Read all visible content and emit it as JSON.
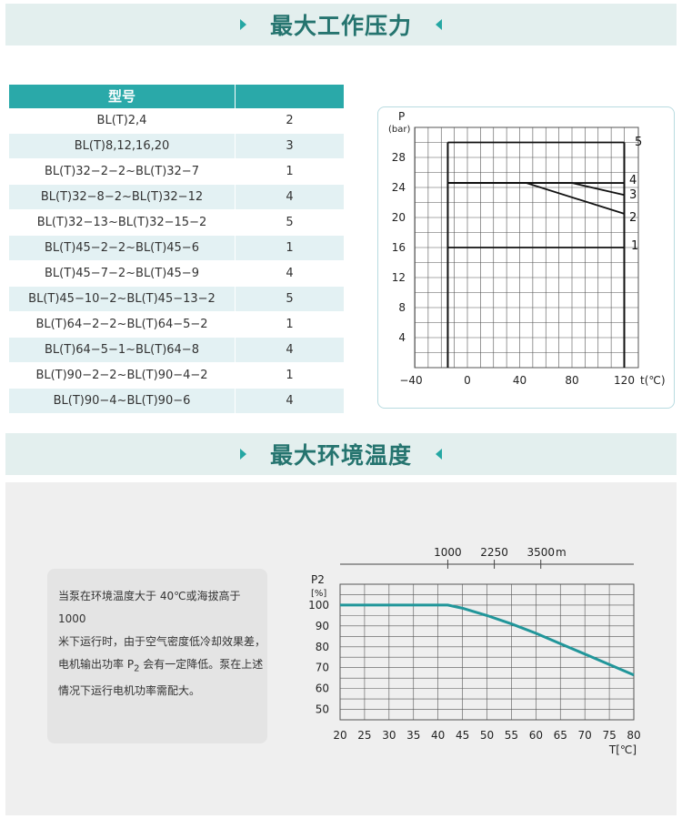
{
  "section1": {
    "title": "最大工作压力"
  },
  "section2": {
    "title": "最大环境温度"
  },
  "table": {
    "header": "型号",
    "rows": [
      {
        "model": "BL(T)2,4",
        "curve": "2"
      },
      {
        "model": "BL(T)8,12,16,20",
        "curve": "3"
      },
      {
        "model": "BL(T)32−2−2~BL(T)32−7",
        "curve": "1"
      },
      {
        "model": "BL(T)32−8−2~BL(T)32−12",
        "curve": "4"
      },
      {
        "model": "BL(T)32−13~BL(T)32−15−2",
        "curve": "5"
      },
      {
        "model": "BL(T)45−2−2~BL(T)45−6",
        "curve": "1"
      },
      {
        "model": "BL(T)45−7−2~BL(T)45−9",
        "curve": "4"
      },
      {
        "model": "BL(T)45−10−2~BL(T)45−13−2",
        "curve": "5"
      },
      {
        "model": "BL(T)64−2−2~BL(T)64−5−2",
        "curve": "1"
      },
      {
        "model": "BL(T)64−5−1~BL(T)64−8",
        "curve": "4"
      },
      {
        "model": "BL(T)90−2−2~BL(T)90−4−2",
        "curve": "1"
      },
      {
        "model": "BL(T)90−4~BL(T)90−6",
        "curve": "4"
      }
    ]
  },
  "note": {
    "line1": "当泵在环境温度大于 40℃或海拔高于 1000",
    "line2": "米下运行时，由于空气密度低冷却效果差，",
    "line3_pre": "电机输出功率 P",
    "line3_sub": "2",
    "line3_post": " 会有一定降低。泵在上述",
    "line4": "情况下运行电机功率需配大。"
  },
  "chart_data": [
    {
      "type": "line",
      "ylabel": "P",
      "ylabel_unit": "(bar)",
      "xlabel": "t(℃)",
      "xlim": [
        -40,
        120
      ],
      "ylim": [
        0,
        32
      ],
      "xticks": [
        "−40",
        "0",
        "40",
        "80",
        "120"
      ],
      "yticks": [
        "4",
        "8",
        "12",
        "16",
        "20",
        "24",
        "28"
      ],
      "grid": true,
      "series": [
        {
          "name": "1",
          "x": [
            -15,
            120
          ],
          "y": [
            16,
            16
          ]
        },
        {
          "name": "2",
          "x": [
            -15,
            45,
            120
          ],
          "y": [
            24.6,
            24.6,
            20.5
          ]
        },
        {
          "name": "3",
          "x": [
            -15,
            80,
            120
          ],
          "y": [
            24.6,
            24.6,
            23
          ]
        },
        {
          "name": "4",
          "x": [
            -15,
            120
          ],
          "y": [
            24.6,
            24.6
          ]
        },
        {
          "name": "5",
          "x": [
            -15,
            120
          ],
          "y": [
            30,
            30
          ]
        }
      ],
      "boundaries": [
        -15,
        120
      ]
    },
    {
      "type": "line",
      "ylabel": "P2",
      "ylabel_unit": "[%]",
      "xlabel": "T[℃]",
      "xlim": [
        20,
        80
      ],
      "ylim": [
        45,
        110
      ],
      "xticks": [
        "20",
        "25",
        "30",
        "35",
        "40",
        "45",
        "50",
        "55",
        "60",
        "65",
        "70",
        "75",
        "80"
      ],
      "yticks": [
        "50",
        "60",
        "70",
        "80",
        "90",
        "100"
      ],
      "top_axis": {
        "ticks": [
          {
            "label": "1000",
            "at": 42
          },
          {
            "label": "2250",
            "at": 51.5
          },
          {
            "label": "3500",
            "at": 61
          }
        ],
        "unit": "m"
      },
      "grid": true,
      "series": [
        {
          "x": [
            20,
            40,
            42,
            45,
            50,
            55,
            60,
            65,
            70,
            75,
            80
          ],
          "y": [
            100,
            100,
            100,
            98.5,
            95,
            91,
            86.5,
            81.5,
            76.5,
            71.5,
            66.5
          ]
        }
      ],
      "color": "#21969a"
    }
  ]
}
